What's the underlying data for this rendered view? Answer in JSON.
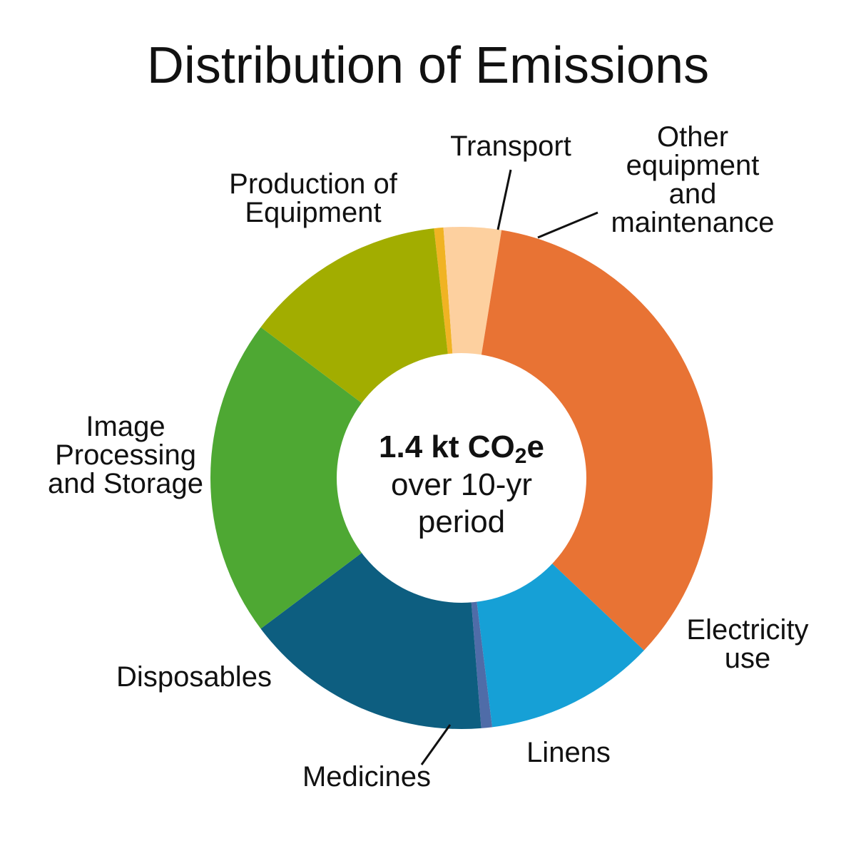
{
  "chart_data": {
    "type": "pie",
    "title": "Distribution of Emissions",
    "center_text": {
      "main": "1.4 kt CO",
      "subscript": "2",
      "suffix": "e",
      "line2": "over 10-yr",
      "line3": "period"
    },
    "slices": [
      {
        "name": "Transport",
        "value": 0.6,
        "color": "#f0b323"
      },
      {
        "name": "Other equipment and maintenance",
        "value": 3.7,
        "color": "#fdd09f"
      },
      {
        "name": "Electricity use",
        "value": 34.5,
        "color": "#e87334"
      },
      {
        "name": "Linens",
        "value": 11.0,
        "color": "#16a0d6"
      },
      {
        "name": "Medicines",
        "value": 0.7,
        "color": "#4f6ca8"
      },
      {
        "name": "Disposables",
        "value": 16.0,
        "color": "#0d5e80"
      },
      {
        "name": "Image Processing and Storage",
        "value": 20.5,
        "color": "#4ea833"
      },
      {
        "name": "Production of Equipment",
        "value": 13.0,
        "color": "#a2ad00"
      }
    ],
    "labels": [
      {
        "lines": [
          "Transport"
        ]
      },
      {
        "lines": [
          "Other",
          "equipment",
          "and",
          "maintenance"
        ]
      },
      {
        "lines": [
          "Electricity",
          "use"
        ]
      },
      {
        "lines": [
          "Linens"
        ]
      },
      {
        "lines": [
          "Medicines"
        ]
      },
      {
        "lines": [
          "Disposables"
        ]
      },
      {
        "lines": [
          "Image",
          "Processing",
          "and Storage"
        ]
      },
      {
        "lines": [
          "Production of",
          "Equipment"
        ]
      }
    ]
  }
}
